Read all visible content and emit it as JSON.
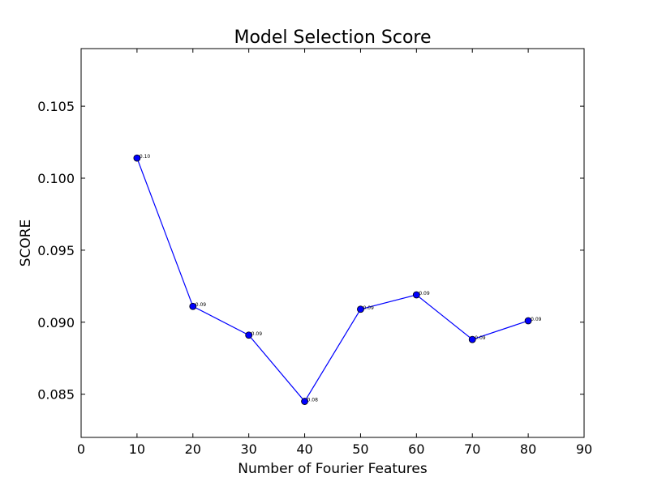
{
  "chart_data": {
    "type": "line",
    "title": "Model Selection Score",
    "xlabel": "Number of Fourier Features",
    "ylabel": "SCORE",
    "xlim": [
      0,
      90
    ],
    "ylim": [
      0.082,
      0.109
    ],
    "xticks": [
      0,
      10,
      20,
      30,
      40,
      50,
      60,
      70,
      80,
      90
    ],
    "xtick_labels": [
      "0",
      "10",
      "20",
      "30",
      "40",
      "50",
      "60",
      "70",
      "80",
      "90"
    ],
    "yticks": [
      0.085,
      0.09,
      0.095,
      0.1,
      0.105
    ],
    "ytick_labels": [
      "0.085",
      "0.090",
      "0.095",
      "0.100",
      "0.105"
    ],
    "grid": false,
    "series": [
      {
        "color": "#0000ff",
        "marker": "circle",
        "x": [
          10,
          20,
          30,
          40,
          50,
          60,
          70,
          80
        ],
        "y": [
          0.1014,
          0.0911,
          0.0891,
          0.0845,
          0.0909,
          0.0919,
          0.0888,
          0.0901
        ],
        "labels": [
          "0.10",
          "0.09",
          "0.09",
          "0.08",
          "0.09",
          "0.09",
          "0.09",
          "0.09"
        ]
      }
    ]
  }
}
